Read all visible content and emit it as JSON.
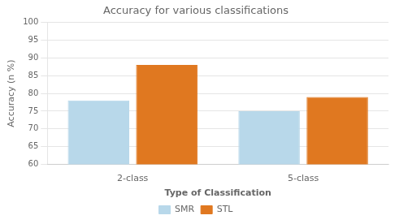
{
  "chart_data": {
    "type": "bar",
    "title": "Accuracy for various classifications",
    "xlabel": "Type of Classification",
    "ylabel": "Accuracy (n %)",
    "categories": [
      "2-class",
      "5-class"
    ],
    "series": [
      {
        "name": "SMR",
        "color": "#b8d8ea",
        "values": [
          78,
          75
        ]
      },
      {
        "name": "STL",
        "color": "#e07820",
        "values": [
          88,
          79
        ]
      }
    ],
    "ylim": [
      60,
      100
    ],
    "yticks": [
      60,
      65,
      70,
      75,
      80,
      85,
      90,
      95,
      100
    ],
    "grid": true,
    "legend": "bottom"
  }
}
